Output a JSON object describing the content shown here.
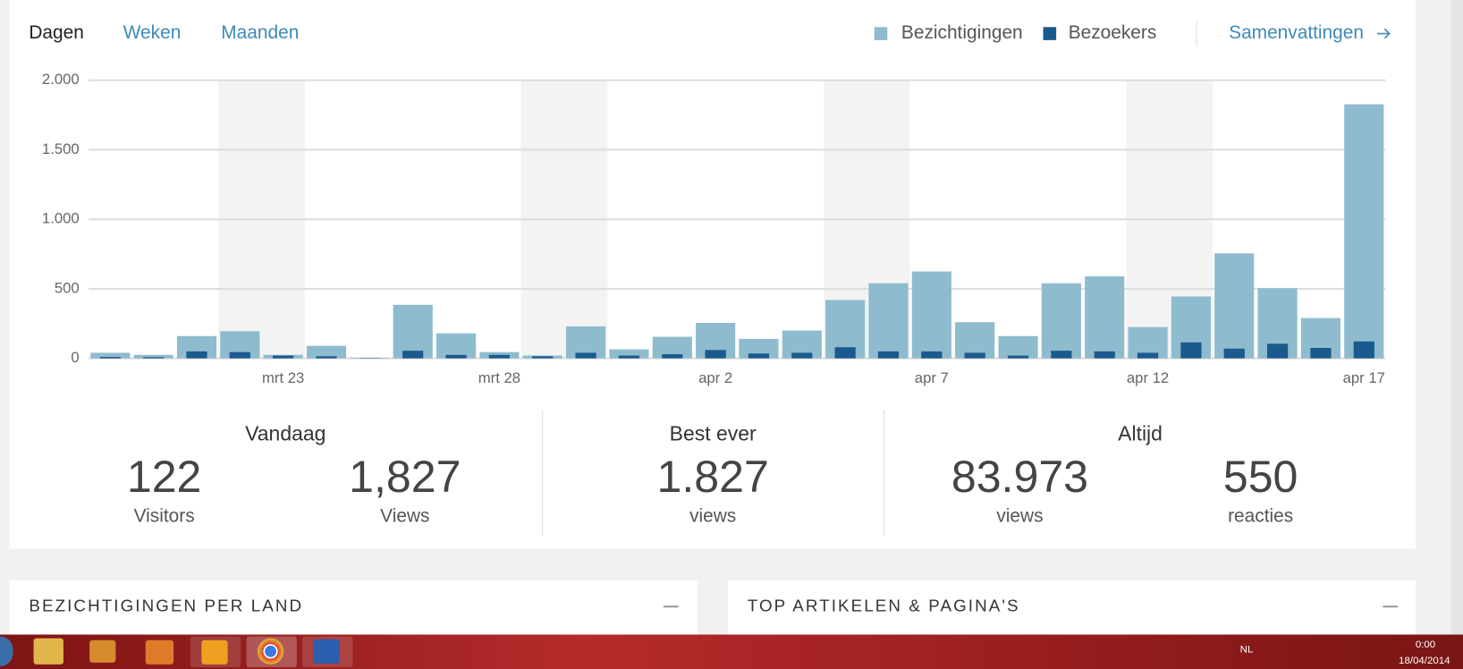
{
  "tabs": [
    "Dagen",
    "Weken",
    "Maanden"
  ],
  "summary_link": "Samenvattingen",
  "chart_data": {
    "type": "bar",
    "categories": [
      null,
      null,
      null,
      null,
      "mrt 23",
      null,
      null,
      null,
      null,
      "mrt 28",
      null,
      null,
      null,
      null,
      "apr 2",
      null,
      null,
      null,
      null,
      "apr 7",
      null,
      null,
      null,
      null,
      "apr 12",
      null,
      null,
      null,
      null,
      "apr 17"
    ],
    "series": [
      {
        "name": "Bezichtigingen",
        "color": "#8fbbce",
        "values": [
          40,
          25,
          160,
          195,
          25,
          90,
          5,
          385,
          180,
          45,
          20,
          230,
          65,
          155,
          255,
          140,
          200,
          420,
          540,
          625,
          260,
          160,
          540,
          590,
          225,
          445,
          755,
          505,
          290,
          1827
        ]
      },
      {
        "name": "Bezoekers",
        "color": "#1b5a8c",
        "values": [
          10,
          8,
          50,
          45,
          20,
          15,
          2,
          55,
          25,
          25,
          15,
          40,
          20,
          30,
          60,
          35,
          40,
          80,
          50,
          50,
          40,
          20,
          55,
          50,
          40,
          115,
          70,
          105,
          75,
          122
        ]
      }
    ],
    "ylim": [
      0,
      2000
    ],
    "yticks": [
      0,
      500,
      {
        "value": 1000,
        "label": "1.000"
      },
      {
        "value": 1500,
        "label": "1.500"
      },
      {
        "value": 2000,
        "label": "2.000"
      }
    ],
    "grid": true
  },
  "summary": [
    {
      "title": "Vandaag",
      "stats": [
        {
          "value": "122",
          "label": "Visitors"
        },
        {
          "value": "1,827",
          "label": "Views"
        }
      ]
    },
    {
      "title": "Best ever",
      "stats": [
        {
          "value": "1.827",
          "label": "views"
        }
      ]
    },
    {
      "title": "Altijd",
      "stats": [
        {
          "value": "83.973",
          "label": "views"
        },
        {
          "value": "550",
          "label": "reacties"
        }
      ]
    }
  ],
  "panels": [
    "BEZICHTIGINGEN PER LAND",
    "TOP ARTIKELEN & PAGINA'S"
  ],
  "taskbar": {
    "language": "NL",
    "time": "0:00",
    "date": "18/04/2014"
  }
}
